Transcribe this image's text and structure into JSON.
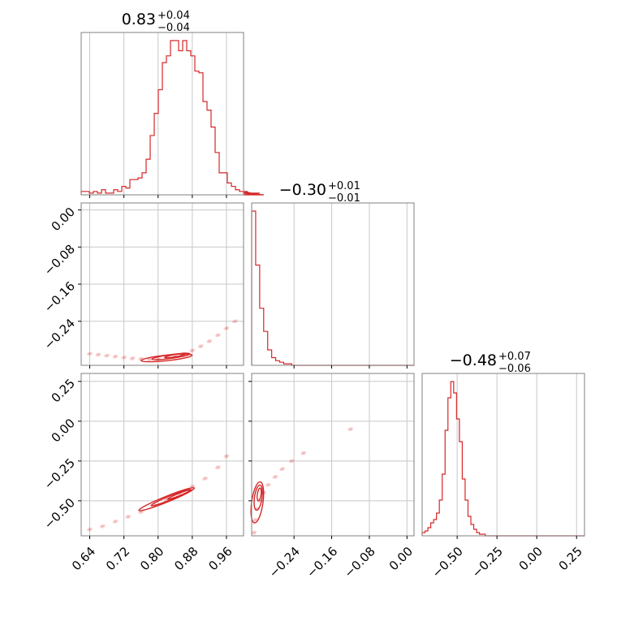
{
  "colors": {
    "series": "#d62728",
    "grid": "#c8c8c8",
    "frame": "#808080"
  },
  "chart_data": {
    "type": "corner",
    "parameters": [
      {
        "title_main": "0.83",
        "title_sup": "+0.04",
        "title_sub": "−0.04"
      },
      {
        "title_main": "−0.30",
        "title_sup": "+0.01",
        "title_sub": "−0.01"
      },
      {
        "title_main": "−0.48",
        "title_sup": "+0.07",
        "title_sub": "−0.06"
      }
    ],
    "grid": true,
    "panels": [
      {
        "id": "hist-0",
        "row": 0,
        "col": 0,
        "type": "histogram",
        "xlim": [
          0.62,
          1.0
        ],
        "bin_edges_start": 0.62,
        "bin_width": 0.0095,
        "counts": [
          2,
          2,
          1,
          2,
          1,
          3,
          1,
          1,
          3,
          2,
          5,
          4,
          9,
          9,
          10,
          13,
          21,
          35,
          48,
          62,
          78,
          82,
          91,
          91,
          85,
          91,
          85,
          82,
          73,
          72,
          55,
          50,
          40,
          25,
          13,
          13,
          7,
          5,
          3,
          2,
          1,
          2,
          1,
          0,
          1,
          0
        ],
        "xticks": [
          "0.64",
          "0.72",
          "0.80",
          "0.88",
          "0.96"
        ],
        "xtick_values": [
          0.64,
          0.72,
          0.8,
          0.88,
          0.96
        ]
      },
      {
        "id": "scatter-1-0",
        "row": 1,
        "col": 0,
        "type": "scatter_density",
        "xlim": [
          0.62,
          1.0
        ],
        "ylim": [
          -0.335,
          0.015
        ],
        "yticks": [
          "0.00",
          "−0.08",
          "−0.16",
          "−0.24"
        ],
        "ytick_values": [
          0.0,
          -0.08,
          -0.16,
          -0.24
        ],
        "points": [
          [
            0.64,
            -0.31
          ],
          [
            0.66,
            -0.312
          ],
          [
            0.68,
            -0.314
          ],
          [
            0.7,
            -0.316
          ],
          [
            0.72,
            -0.318
          ],
          [
            0.74,
            -0.32
          ],
          [
            0.76,
            -0.321
          ],
          [
            0.78,
            -0.322
          ],
          [
            0.8,
            -0.321
          ],
          [
            0.82,
            -0.318
          ],
          [
            0.84,
            -0.315
          ],
          [
            0.86,
            -0.31
          ],
          [
            0.88,
            -0.303
          ],
          [
            0.9,
            -0.294
          ],
          [
            0.92,
            -0.283
          ],
          [
            0.94,
            -0.27
          ],
          [
            0.96,
            -0.255
          ],
          [
            0.98,
            -0.24
          ]
        ],
        "contours": [
          {
            "cx": 0.82,
            "cy": -0.319,
            "rx": 0.06,
            "ry": 0.006,
            "angle": -6
          },
          {
            "cx": 0.83,
            "cy": -0.316,
            "rx": 0.045,
            "ry": 0.004,
            "angle": -8
          },
          {
            "cx": 0.84,
            "cy": -0.314,
            "rx": 0.025,
            "ry": 0.0025,
            "angle": -10
          }
        ]
      },
      {
        "id": "hist-1",
        "row": 1,
        "col": 1,
        "type": "histogram",
        "xlim": [
          -0.33,
          0.015
        ],
        "bin_edges_start": -0.33,
        "bin_width": 0.0085,
        "counts": [
          100,
          65,
          37,
          22,
          10,
          5,
          3,
          2,
          1,
          1,
          0,
          0,
          0,
          0,
          0,
          0,
          0,
          0,
          0,
          0,
          0,
          0,
          0,
          0,
          0,
          0,
          0,
          0,
          0,
          0,
          0,
          0,
          0,
          0,
          0,
          0,
          0,
          0,
          0,
          0,
          0
        ],
        "xticks": [
          "−0.24",
          "−0.16",
          "−0.08",
          "0.00"
        ],
        "xtick_values": [
          -0.24,
          -0.16,
          -0.08,
          0.0
        ]
      },
      {
        "id": "scatter-2-0",
        "row": 2,
        "col": 0,
        "type": "scatter_density",
        "xlim": [
          0.62,
          1.0
        ],
        "ylim": [
          -0.72,
          0.3
        ],
        "yticks": [
          "0.25",
          "0.00",
          "−0.25",
          "−0.50"
        ],
        "ytick_values": [
          0.25,
          0.0,
          -0.25,
          -0.5
        ],
        "points": [
          [
            0.64,
            -0.68
          ],
          [
            0.67,
            -0.66
          ],
          [
            0.7,
            -0.63
          ],
          [
            0.73,
            -0.6
          ],
          [
            0.76,
            -0.57
          ],
          [
            0.79,
            -0.53
          ],
          [
            0.82,
            -0.49
          ],
          [
            0.85,
            -0.45
          ],
          [
            0.88,
            -0.41
          ],
          [
            0.91,
            -0.36
          ],
          [
            0.94,
            -0.29
          ],
          [
            0.96,
            -0.22
          ]
        ],
        "contours": [
          {
            "cx": 0.82,
            "cy": -0.49,
            "rx": 0.07,
            "ry": 0.018,
            "angle": -22
          },
          {
            "cx": 0.83,
            "cy": -0.48,
            "rx": 0.05,
            "ry": 0.012,
            "angle": -22
          },
          {
            "cx": 0.85,
            "cy": -0.46,
            "rx": 0.03,
            "ry": 0.007,
            "angle": -22
          }
        ]
      },
      {
        "id": "scatter-2-1",
        "row": 2,
        "col": 1,
        "type": "scatter_density",
        "xlim": [
          -0.33,
          0.015
        ],
        "ylim": [
          -0.72,
          0.3
        ],
        "points": [
          [
            -0.325,
            -0.7
          ],
          [
            -0.322,
            -0.62
          ],
          [
            -0.318,
            -0.55
          ],
          [
            -0.312,
            -0.5
          ],
          [
            -0.305,
            -0.45
          ],
          [
            -0.295,
            -0.4
          ],
          [
            -0.28,
            -0.35
          ],
          [
            -0.265,
            -0.3
          ],
          [
            -0.245,
            -0.25
          ],
          [
            -0.22,
            -0.2
          ],
          [
            -0.12,
            -0.05
          ]
        ],
        "contours": [
          {
            "cx": -0.318,
            "cy": -0.51,
            "rx": 0.012,
            "ry": 0.13,
            "angle": 8
          },
          {
            "cx": -0.316,
            "cy": -0.48,
            "rx": 0.008,
            "ry": 0.08,
            "angle": 8
          },
          {
            "cx": -0.314,
            "cy": -0.46,
            "rx": 0.004,
            "ry": 0.04,
            "angle": 8
          }
        ]
      },
      {
        "id": "hist-2",
        "row": 2,
        "col": 2,
        "type": "histogram",
        "xlim": [
          -0.72,
          0.3
        ],
        "bin_edges_start": -0.72,
        "bin_width": 0.018,
        "counts": [
          2,
          3,
          5,
          8,
          10,
          14,
          22,
          38,
          65,
          85,
          95,
          88,
          72,
          58,
          35,
          22,
          12,
          7,
          4,
          2,
          1,
          1,
          0,
          0,
          0,
          0,
          0,
          0,
          0,
          0,
          0,
          0,
          0,
          0,
          0,
          0,
          0,
          0,
          0,
          0,
          0,
          0,
          0,
          0,
          0,
          0,
          0,
          0,
          0,
          0,
          0,
          0,
          0,
          0,
          0,
          0,
          0
        ],
        "xticks": [
          "−0.50",
          "−0.25",
          "0.00",
          "0.25"
        ],
        "xtick_values": [
          -0.5,
          -0.25,
          0.0,
          0.25
        ]
      }
    ]
  }
}
